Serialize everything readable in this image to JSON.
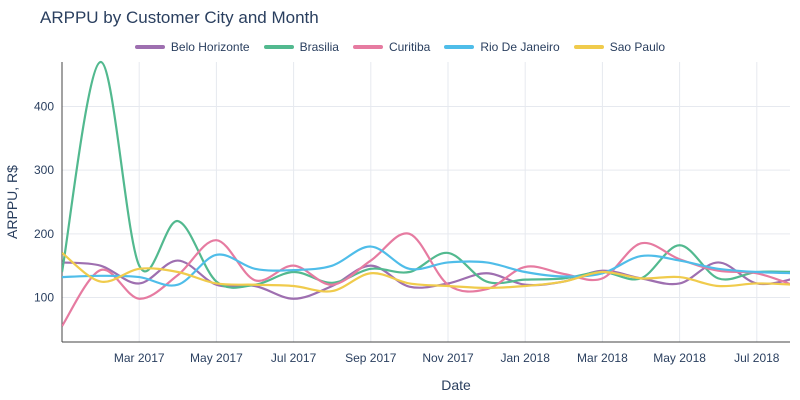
{
  "chart_data": {
    "type": "line",
    "title": "ARPPU by Customer City and Month",
    "xlabel": "Date",
    "ylabel": "ARPPU, R$",
    "ylim": [
      30,
      470
    ],
    "yticks": [
      100,
      200,
      300,
      400
    ],
    "x_labels": [
      "Mar 2017",
      "May 2017",
      "Jul 2017",
      "Sep 2017",
      "Nov 2017",
      "Jan 2018",
      "Mar 2018",
      "May 2018",
      "Jul 2018"
    ],
    "x_label_month_index": [
      2,
      4,
      6,
      8,
      10,
      12,
      14,
      16,
      18
    ],
    "months": [
      "Jan 2017",
      "Feb 2017",
      "Mar 2017",
      "Apr 2017",
      "May 2017",
      "Jun 2017",
      "Jul 2017",
      "Aug 2017",
      "Sep 2017",
      "Oct 2017",
      "Nov 2017",
      "Dec 2017",
      "Jan 2018",
      "Feb 2018",
      "Mar 2018",
      "Apr 2018",
      "May 2018",
      "Jun 2018",
      "Jul 2018",
      "Aug 2018"
    ],
    "series": [
      {
        "name": "Belo Horizonte",
        "color": "#9e6fb0",
        "values": [
          155,
          150,
          122,
          158,
          120,
          118,
          98,
          118,
          150,
          117,
          122,
          138,
          120,
          125,
          142,
          130,
          122,
          155,
          122,
          130
        ]
      },
      {
        "name": "Brasilia",
        "color": "#52b98f",
        "values": [
          140,
          470,
          150,
          220,
          125,
          120,
          140,
          123,
          145,
          140,
          170,
          125,
          128,
          130,
          140,
          130,
          182,
          130,
          140,
          140
        ]
      },
      {
        "name": "Curitiba",
        "color": "#e67ba1",
        "values": [
          55,
          143,
          98,
          135,
          190,
          127,
          150,
          120,
          158,
          200,
          120,
          113,
          148,
          137,
          130,
          185,
          160,
          142,
          138,
          118
        ]
      },
      {
        "name": "Rio De Janeiro",
        "color": "#4fbde9",
        "values": [
          132,
          134,
          132,
          120,
          167,
          145,
          143,
          150,
          180,
          145,
          155,
          155,
          140,
          133,
          138,
          165,
          158,
          145,
          140,
          138
        ]
      },
      {
        "name": "Sao Paulo",
        "color": "#f0cb4c",
        "values": [
          170,
          125,
          145,
          140,
          122,
          120,
          118,
          110,
          138,
          122,
          118,
          115,
          118,
          125,
          140,
          130,
          132,
          118,
          122,
          120
        ]
      }
    ]
  }
}
